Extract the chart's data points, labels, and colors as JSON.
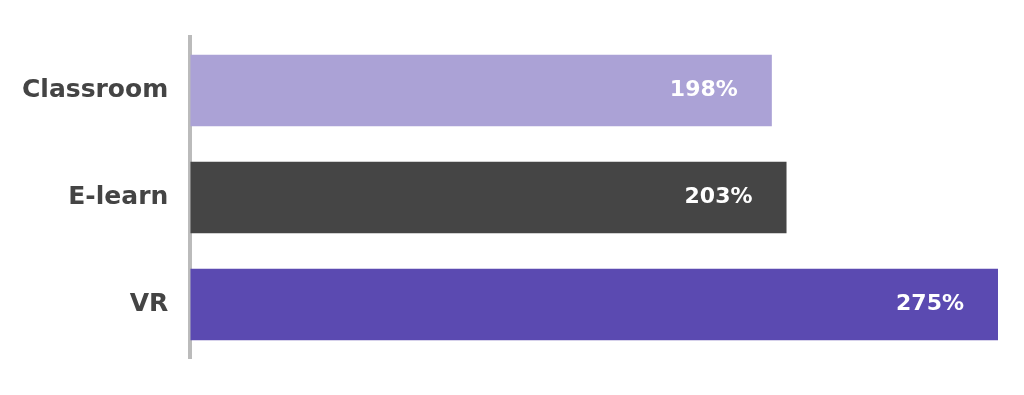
{
  "chart_data": {
    "type": "bar",
    "orientation": "horizontal",
    "categories": [
      "Classroom",
      "E-learn",
      "VR"
    ],
    "values": [
      198,
      203,
      275
    ],
    "colors": [
      "#aba2d6",
      "#454545",
      "#5b4ab1"
    ],
    "value_labels": [
      "198%",
      "203%",
      "275%"
    ],
    "xlim": [
      0,
      275
    ],
    "tick_labels": "y",
    "grid": false,
    "legend": false
  }
}
